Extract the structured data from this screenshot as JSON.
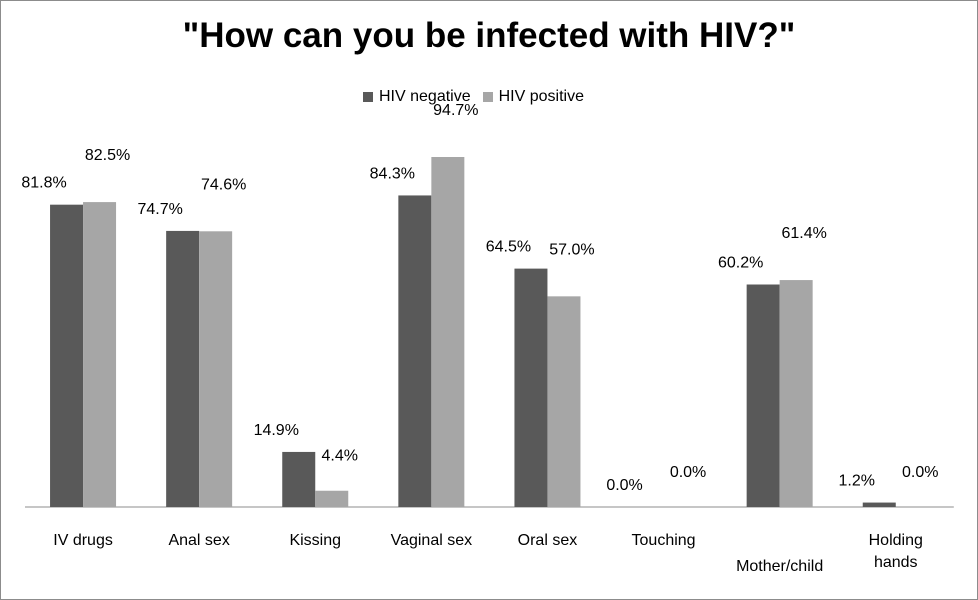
{
  "chart_data": {
    "type": "bar",
    "title": "\"How can you be infected with HIV?\"",
    "categories": [
      [
        "IV drugs"
      ],
      [
        "Anal sex"
      ],
      [
        "Kissing"
      ],
      [
        "Vaginal sex"
      ],
      [
        "Oral sex"
      ],
      [
        "Touching"
      ],
      [
        "Mother/child"
      ],
      [
        "Holding",
        "hands"
      ]
    ],
    "series": [
      {
        "name": "HIV negative",
        "color": "#595959",
        "values": [
          81.8,
          74.7,
          14.9,
          84.3,
          64.5,
          0.0,
          60.2,
          1.2
        ],
        "labels": [
          "81.8%",
          "74.7%",
          "14.9%",
          "84.3%",
          "64.5%",
          "0.0%",
          "60.2%",
          "1.2%"
        ]
      },
      {
        "name": "HIV positive",
        "color": "#a6a6a6",
        "values": [
          82.5,
          74.6,
          4.4,
          94.7,
          57.0,
          0.0,
          61.4,
          0.0
        ],
        "labels": [
          "82.5%",
          "74.6%",
          "4.4%",
          "94.7%",
          "57.0%",
          "0.0%",
          "61.4%",
          "0.0%"
        ]
      }
    ],
    "ylim": [
      0,
      100
    ],
    "legend_position": "top",
    "grid": false
  }
}
